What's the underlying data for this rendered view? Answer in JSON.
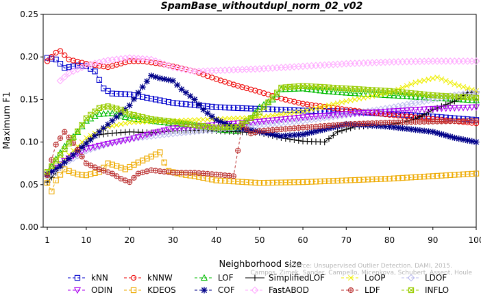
{
  "chart_data": {
    "type": "line",
    "title": "SpamBase_withoutdupl_norm_02_v02",
    "xlabel": "Neighborhood size",
    "ylabel": "Maximum F1",
    "xlim": [
      1,
      100
    ],
    "ylim": [
      0,
      0.25
    ],
    "x_ticks": [
      "1",
      "10",
      "20",
      "30",
      "40",
      "50",
      "60",
      "70",
      "80",
      "90",
      "100"
    ],
    "y_ticks": [
      "0.00",
      "0.05",
      "0.10",
      "0.15",
      "0.20",
      "0.25"
    ],
    "grid": false,
    "legend_position": "bottom",
    "credit": [
      "Source: Unsupervised Outlier Detection. DAMI, 2015.",
      "Campos, Zimek, Sander, Campello, Micenkova, Schubert, Assent, Houle"
    ],
    "series": [
      {
        "name": "kNN",
        "color": "#0000cc",
        "marker": "square",
        "dash": "4,3",
        "points": [
          [
            1,
            0.199
          ],
          [
            3,
            0.197
          ],
          [
            5,
            0.187
          ],
          [
            8,
            0.19
          ],
          [
            10,
            0.189
          ],
          [
            12,
            0.183
          ],
          [
            14,
            0.163
          ],
          [
            16,
            0.157
          ],
          [
            20,
            0.156
          ],
          [
            25,
            0.151
          ],
          [
            30,
            0.146
          ],
          [
            40,
            0.141
          ],
          [
            50,
            0.139
          ],
          [
            60,
            0.137
          ],
          [
            70,
            0.136
          ],
          [
            80,
            0.133
          ],
          [
            90,
            0.13
          ],
          [
            100,
            0.126
          ]
        ]
      },
      {
        "name": "kNNW",
        "color": "#ee0000",
        "marker": "circle",
        "dash": "4,3",
        "points": [
          [
            1,
            0.195
          ],
          [
            3,
            0.205
          ],
          [
            4,
            0.207
          ],
          [
            6,
            0.197
          ],
          [
            10,
            0.192
          ],
          [
            15,
            0.188
          ],
          [
            20,
            0.195
          ],
          [
            23,
            0.195
          ],
          [
            27,
            0.192
          ],
          [
            30,
            0.189
          ],
          [
            35,
            0.183
          ],
          [
            40,
            0.174
          ],
          [
            45,
            0.166
          ],
          [
            50,
            0.159
          ],
          [
            55,
            0.151
          ],
          [
            60,
            0.145
          ],
          [
            70,
            0.138
          ],
          [
            80,
            0.132
          ],
          [
            90,
            0.127
          ],
          [
            100,
            0.122
          ]
        ]
      },
      {
        "name": "LOF",
        "color": "#00bb00",
        "marker": "triangle-up",
        "dash": "4,3",
        "points": [
          [
            1,
            0.063
          ],
          [
            3,
            0.08
          ],
          [
            5,
            0.095
          ],
          [
            8,
            0.112
          ],
          [
            10,
            0.125
          ],
          [
            13,
            0.133
          ],
          [
            16,
            0.134
          ],
          [
            20,
            0.128
          ],
          [
            25,
            0.125
          ],
          [
            30,
            0.122
          ],
          [
            35,
            0.12
          ],
          [
            40,
            0.115
          ],
          [
            45,
            0.113
          ],
          [
            48,
            0.128
          ],
          [
            50,
            0.141
          ],
          [
            53,
            0.15
          ],
          [
            55,
            0.162
          ],
          [
            60,
            0.163
          ],
          [
            65,
            0.16
          ],
          [
            70,
            0.158
          ],
          [
            80,
            0.155
          ],
          [
            90,
            0.152
          ],
          [
            100,
            0.149
          ]
        ]
      },
      {
        "name": "SimplifiedLOF",
        "color": "#000000",
        "marker": "plus",
        "dash": "",
        "points": [
          [
            1,
            0.053
          ],
          [
            4,
            0.07
          ],
          [
            7,
            0.085
          ],
          [
            10,
            0.1
          ],
          [
            12,
            0.108
          ],
          [
            15,
            0.11
          ],
          [
            20,
            0.112
          ],
          [
            25,
            0.111
          ],
          [
            30,
            0.113
          ],
          [
            35,
            0.114
          ],
          [
            40,
            0.113
          ],
          [
            45,
            0.112
          ],
          [
            50,
            0.111
          ],
          [
            55,
            0.105
          ],
          [
            60,
            0.101
          ],
          [
            65,
            0.1
          ],
          [
            68,
            0.112
          ],
          [
            72,
            0.118
          ],
          [
            78,
            0.12
          ],
          [
            82,
            0.122
          ],
          [
            86,
            0.127
          ],
          [
            90,
            0.138
          ],
          [
            95,
            0.148
          ],
          [
            98,
            0.158
          ],
          [
            100,
            0.159
          ]
        ]
      },
      {
        "name": "LoOP",
        "color": "#eeee00",
        "marker": "x",
        "dash": "4,3",
        "points": [
          [
            1,
            0.06
          ],
          [
            4,
            0.075
          ],
          [
            7,
            0.09
          ],
          [
            10,
            0.105
          ],
          [
            15,
            0.118
          ],
          [
            20,
            0.123
          ],
          [
            30,
            0.125
          ],
          [
            40,
            0.127
          ],
          [
            50,
            0.129
          ],
          [
            60,
            0.136
          ],
          [
            70,
            0.148
          ],
          [
            80,
            0.158
          ],
          [
            86,
            0.17
          ],
          [
            91,
            0.176
          ],
          [
            95,
            0.168
          ],
          [
            100,
            0.16
          ]
        ]
      },
      {
        "name": "LDOF",
        "color": "#bbbbee",
        "marker": "diamond",
        "dash": "4,3",
        "points": [
          [
            1,
            0.06
          ],
          [
            5,
            0.075
          ],
          [
            10,
            0.09
          ],
          [
            15,
            0.098
          ],
          [
            20,
            0.104
          ],
          [
            30,
            0.11
          ],
          [
            40,
            0.115
          ],
          [
            50,
            0.12
          ],
          [
            60,
            0.125
          ],
          [
            70,
            0.132
          ],
          [
            80,
            0.14
          ],
          [
            90,
            0.15
          ],
          [
            95,
            0.155
          ],
          [
            100,
            0.158
          ]
        ]
      },
      {
        "name": "ODIN",
        "color": "#aa00ee",
        "marker": "triangle-down",
        "dash": "4,3",
        "points": [
          [
            1,
            0.062
          ],
          [
            5,
            0.078
          ],
          [
            10,
            0.092
          ],
          [
            15,
            0.098
          ],
          [
            20,
            0.103
          ],
          [
            25,
            0.11
          ],
          [
            30,
            0.116
          ],
          [
            40,
            0.12
          ],
          [
            50,
            0.124
          ],
          [
            60,
            0.129
          ],
          [
            70,
            0.133
          ],
          [
            80,
            0.136
          ],
          [
            90,
            0.139
          ],
          [
            100,
            0.141
          ]
        ]
      },
      {
        "name": "KDEOS",
        "color": "#eeaa00",
        "marker": "square",
        "dash": "4,3",
        "points": [
          [
            1,
            0.052
          ],
          [
            2,
            0.042
          ],
          [
            3,
            0.055
          ],
          [
            5,
            0.068
          ],
          [
            8,
            0.062
          ],
          [
            10,
            0.061
          ],
          [
            13,
            0.065
          ],
          [
            15,
            0.075
          ],
          [
            17,
            0.072
          ],
          [
            19,
            0.068
          ],
          [
            22,
            0.076
          ],
          [
            25,
            0.083
          ],
          [
            27,
            0.088
          ],
          [
            28,
            0.076
          ],
          [
            29,
            0.066
          ],
          [
            32,
            0.062
          ],
          [
            35,
            0.06
          ],
          [
            40,
            0.055
          ],
          [
            50,
            0.052
          ],
          [
            60,
            0.053
          ],
          [
            70,
            0.055
          ],
          [
            80,
            0.057
          ],
          [
            90,
            0.06
          ],
          [
            100,
            0.063
          ]
        ]
      },
      {
        "name": "COF",
        "color": "#000088",
        "marker": "star",
        "dash": "4,3",
        "points": [
          [
            1,
            0.062
          ],
          [
            4,
            0.072
          ],
          [
            7,
            0.085
          ],
          [
            10,
            0.098
          ],
          [
            13,
            0.112
          ],
          [
            16,
            0.125
          ],
          [
            20,
            0.143
          ],
          [
            22,
            0.158
          ],
          [
            25,
            0.178
          ],
          [
            27,
            0.175
          ],
          [
            30,
            0.172
          ],
          [
            32,
            0.162
          ],
          [
            35,
            0.15
          ],
          [
            37,
            0.138
          ],
          [
            40,
            0.126
          ],
          [
            43,
            0.12
          ],
          [
            45,
            0.116
          ],
          [
            48,
            0.114
          ],
          [
            52,
            0.11
          ],
          [
            55,
            0.107
          ],
          [
            60,
            0.109
          ],
          [
            65,
            0.115
          ],
          [
            70,
            0.121
          ],
          [
            75,
            0.12
          ],
          [
            80,
            0.118
          ],
          [
            85,
            0.115
          ],
          [
            90,
            0.112
          ],
          [
            95,
            0.105
          ],
          [
            100,
            0.1
          ]
        ]
      },
      {
        "name": "FastABOD",
        "color": "#ffaaff",
        "marker": "diamond",
        "dash": "4,3",
        "points": [
          [
            4,
            0.172
          ],
          [
            6,
            0.181
          ],
          [
            10,
            0.19
          ],
          [
            15,
            0.196
          ],
          [
            20,
            0.199
          ],
          [
            25,
            0.197
          ],
          [
            30,
            0.188
          ],
          [
            35,
            0.183
          ],
          [
            40,
            0.184
          ],
          [
            50,
            0.186
          ],
          [
            60,
            0.189
          ],
          [
            70,
            0.192
          ],
          [
            80,
            0.194
          ],
          [
            90,
            0.195
          ],
          [
            100,
            0.195
          ]
        ]
      },
      {
        "name": "LDF",
        "color": "#bb3333",
        "marker": "circle-plus",
        "dash": "4,3",
        "points": [
          [
            1,
            0.061
          ],
          [
            3,
            0.097
          ],
          [
            5,
            0.112
          ],
          [
            7,
            0.099
          ],
          [
            10,
            0.075
          ],
          [
            13,
            0.068
          ],
          [
            16,
            0.063
          ],
          [
            18,
            0.057
          ],
          [
            20,
            0.053
          ],
          [
            22,
            0.063
          ],
          [
            25,
            0.067
          ],
          [
            30,
            0.064
          ],
          [
            35,
            0.064
          ],
          [
            40,
            0.062
          ],
          [
            44,
            0.06
          ],
          [
            46,
            0.12
          ],
          [
            48,
            0.11
          ],
          [
            50,
            0.113
          ],
          [
            60,
            0.117
          ],
          [
            70,
            0.121
          ],
          [
            80,
            0.123
          ],
          [
            90,
            0.124
          ],
          [
            100,
            0.125
          ]
        ]
      },
      {
        "name": "INFLO",
        "color": "#99cc00",
        "marker": "square-x",
        "dash": "4,3",
        "points": [
          [
            1,
            0.065
          ],
          [
            4,
            0.085
          ],
          [
            7,
            0.105
          ],
          [
            10,
            0.128
          ],
          [
            13,
            0.14
          ],
          [
            15,
            0.142
          ],
          [
            18,
            0.138
          ],
          [
            20,
            0.133
          ],
          [
            25,
            0.127
          ],
          [
            30,
            0.124
          ],
          [
            35,
            0.12
          ],
          [
            40,
            0.117
          ],
          [
            45,
            0.118
          ],
          [
            50,
            0.135
          ],
          [
            55,
            0.164
          ],
          [
            60,
            0.166
          ],
          [
            70,
            0.163
          ],
          [
            80,
            0.16
          ],
          [
            90,
            0.155
          ],
          [
            100,
            0.152
          ]
        ]
      }
    ]
  }
}
